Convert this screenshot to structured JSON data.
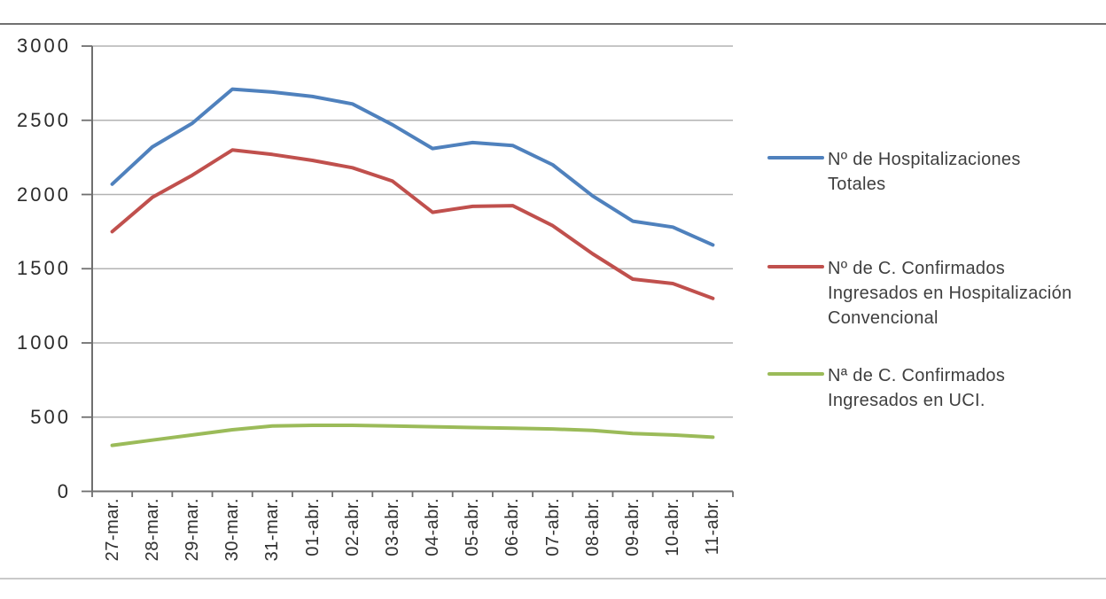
{
  "chart_data": {
    "type": "line",
    "title": "",
    "categories": [
      "27-mar.",
      "28-mar.",
      "29-mar.",
      "30-mar.",
      "31-mar.",
      "01-abr.",
      "02-abr.",
      "03-abr.",
      "04-abr.",
      "05-abr.",
      "06-abr.",
      "07-abr.",
      "08-abr.",
      "09-abr.",
      "10-abr.",
      "11-abr."
    ],
    "series": [
      {
        "name": "Nº de Hospitalizaciones Totales",
        "color": "#4F81BD",
        "values": [
          2070,
          2320,
          2480,
          2710,
          2690,
          2660,
          2610,
          2470,
          2310,
          2350,
          2330,
          2200,
          1990,
          1820,
          1780,
          1660
        ]
      },
      {
        "name": "Nº de C. Confirmados Ingresados en Hospitalización Convencional",
        "color": "#C0504D",
        "values": [
          1750,
          1980,
          2130,
          2300,
          2270,
          2230,
          2180,
          2090,
          1880,
          1920,
          1925,
          1790,
          1600,
          1430,
          1400,
          1300
        ]
      },
      {
        "name": "Nª de C. Confirmados Ingresados en UCI.",
        "color": "#9BBB59",
        "values": [
          310,
          345,
          380,
          415,
          440,
          445,
          445,
          440,
          435,
          430,
          425,
          420,
          410,
          390,
          380,
          365
        ]
      }
    ],
    "xlabel": "",
    "ylabel": "",
    "ylim": [
      0,
      3000
    ],
    "y_ticks": [
      "0",
      "500",
      "1000",
      "1500",
      "2000",
      "2500",
      "3000"
    ],
    "grid": "horizontal gridlines every 500",
    "legend_position": "right"
  },
  "colors": {
    "background": "#ffffff",
    "gridline": "#b3b3b3",
    "axis": "#6f6f6f",
    "axis_tick": "#6f6f6f",
    "y_label_text": "#2b2b2b",
    "x_label_text": "#303030",
    "legend_text": "#3f3f3f",
    "top_border": "#717171",
    "bottom_border": "#c9c9c9"
  }
}
